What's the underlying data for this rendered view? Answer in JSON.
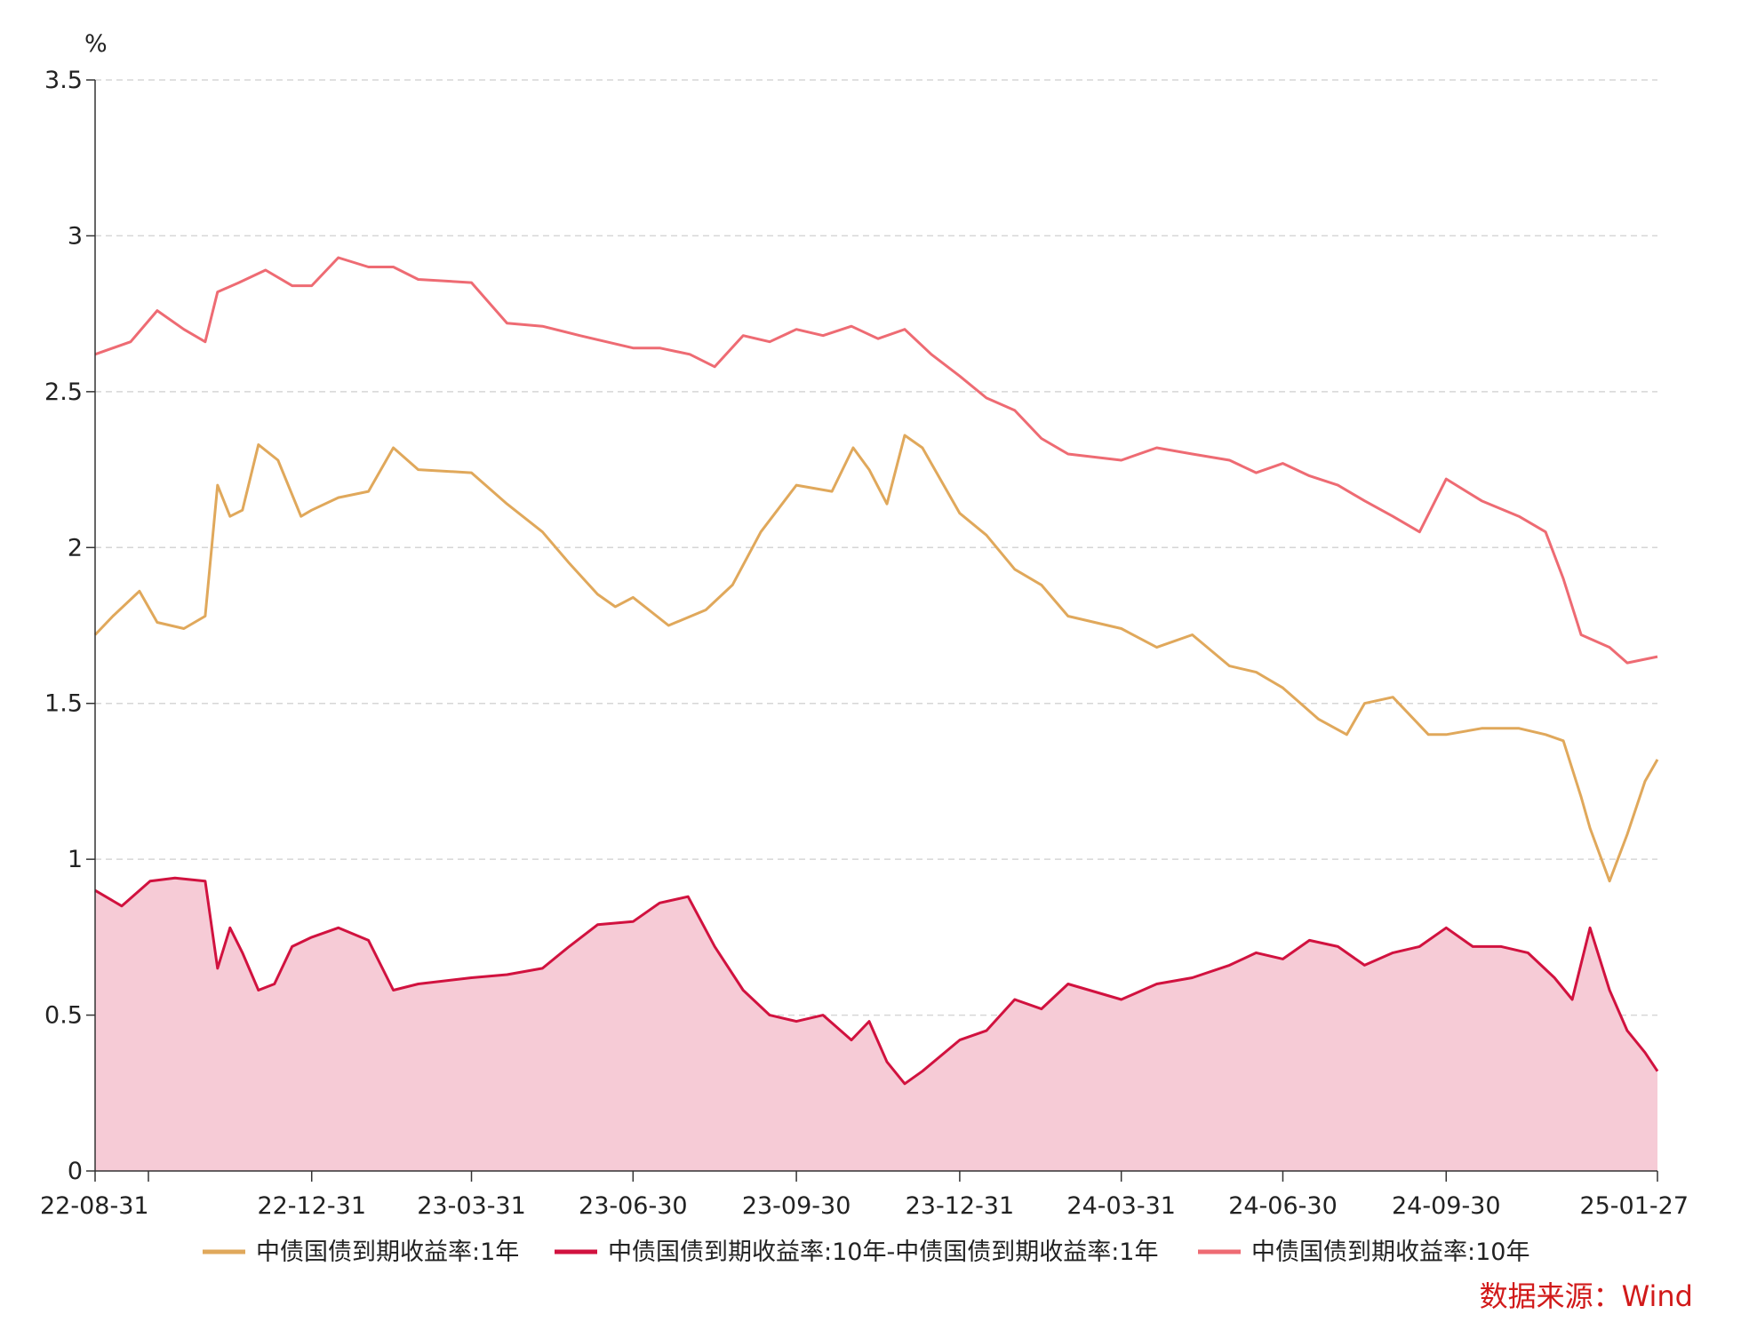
{
  "chart_data": {
    "type": "line",
    "title": "",
    "y_unit": "%",
    "ylim": [
      0,
      3.5
    ],
    "y_ticks": [
      "0",
      "0.5",
      "1",
      "1.5",
      "2",
      "2.5",
      "3",
      "3.5"
    ],
    "x_range": [
      "2022-08-31",
      "2025-01-27"
    ],
    "x_ticks": [
      {
        "label": "22-08-31",
        "date": "2022-08-31"
      },
      {
        "label": "22-12-31",
        "date": "2022-12-31"
      },
      {
        "label": "23-03-31",
        "date": "2023-03-31"
      },
      {
        "label": "23-06-30",
        "date": "2023-06-30"
      },
      {
        "label": "23-09-30",
        "date": "2023-09-30"
      },
      {
        "label": "23-12-31",
        "date": "2023-12-31"
      },
      {
        "label": "24-03-31",
        "date": "2024-03-31"
      },
      {
        "label": "24-06-30",
        "date": "2024-06-30"
      },
      {
        "label": "24-09-30",
        "date": "2024-09-30"
      },
      {
        "label": "25-01-27",
        "date": "2025-01-27"
      }
    ],
    "grid": true,
    "legend_position": "bottom",
    "series": [
      {
        "name": "中债国债到期收益率:1年",
        "color": "#e0a85b",
        "style": "line",
        "x": [
          "2022-08-31",
          "2022-09-10",
          "2022-09-25",
          "2022-10-05",
          "2022-10-20",
          "2022-11-01",
          "2022-11-08",
          "2022-11-15",
          "2022-11-22",
          "2022-12-01",
          "2022-12-12",
          "2022-12-25",
          "2022-12-31",
          "2023-01-15",
          "2023-02-01",
          "2023-02-15",
          "2023-03-01",
          "2023-03-31",
          "2023-04-20",
          "2023-05-10",
          "2023-05-25",
          "2023-06-10",
          "2023-06-20",
          "2023-06-30",
          "2023-07-20",
          "2023-08-10",
          "2023-08-25",
          "2023-09-10",
          "2023-09-30",
          "2023-10-20",
          "2023-11-01",
          "2023-11-10",
          "2023-11-20",
          "2023-11-30",
          "2023-12-10",
          "2023-12-31",
          "2024-01-15",
          "2024-01-31",
          "2024-02-15",
          "2024-03-01",
          "2024-03-31",
          "2024-04-20",
          "2024-05-10",
          "2024-05-31",
          "2024-06-15",
          "2024-06-30",
          "2024-07-20",
          "2024-08-05",
          "2024-08-15",
          "2024-08-31",
          "2024-09-20",
          "2024-09-30",
          "2024-10-20",
          "2024-11-10",
          "2024-11-25",
          "2024-12-05",
          "2024-12-15",
          "2024-12-20",
          "2024-12-31",
          "2025-01-10",
          "2025-01-20",
          "2025-01-27"
        ],
        "values": [
          1.72,
          1.78,
          1.86,
          1.76,
          1.74,
          1.78,
          2.2,
          2.1,
          2.12,
          2.33,
          2.28,
          2.1,
          2.12,
          2.16,
          2.18,
          2.32,
          2.25,
          2.24,
          2.14,
          2.05,
          1.95,
          1.85,
          1.81,
          1.84,
          1.75,
          1.8,
          1.88,
          2.05,
          2.2,
          2.18,
          2.32,
          2.25,
          2.14,
          2.36,
          2.32,
          2.11,
          2.04,
          1.93,
          1.88,
          1.78,
          1.74,
          1.68,
          1.72,
          1.62,
          1.6,
          1.55,
          1.45,
          1.4,
          1.5,
          1.52,
          1.4,
          1.4,
          1.42,
          1.42,
          1.4,
          1.38,
          1.2,
          1.1,
          0.93,
          1.08,
          1.25,
          1.32
        ]
      },
      {
        "name": "中债国债到期收益率:10年-中债国债到期收益率:1年",
        "color": "#d1123f",
        "fill": "#f6cbd6",
        "style": "area",
        "x": [
          "2022-08-31",
          "2022-09-15",
          "2022-10-01",
          "2022-10-15",
          "2022-11-01",
          "2022-11-08",
          "2022-11-15",
          "2022-11-22",
          "2022-12-01",
          "2022-12-10",
          "2022-12-20",
          "2022-12-31",
          "2023-01-15",
          "2023-02-01",
          "2023-02-15",
          "2023-03-01",
          "2023-03-31",
          "2023-04-20",
          "2023-05-10",
          "2023-05-25",
          "2023-06-10",
          "2023-06-30",
          "2023-07-15",
          "2023-07-31",
          "2023-08-15",
          "2023-08-31",
          "2023-09-15",
          "2023-09-30",
          "2023-10-15",
          "2023-10-31",
          "2023-11-10",
          "2023-11-20",
          "2023-11-30",
          "2023-12-10",
          "2023-12-31",
          "2024-01-15",
          "2024-01-31",
          "2024-02-15",
          "2024-03-01",
          "2024-03-31",
          "2024-04-20",
          "2024-05-10",
          "2024-05-31",
          "2024-06-15",
          "2024-06-30",
          "2024-07-15",
          "2024-07-31",
          "2024-08-15",
          "2024-08-31",
          "2024-09-15",
          "2024-09-30",
          "2024-10-15",
          "2024-10-31",
          "2024-11-15",
          "2024-11-30",
          "2024-12-10",
          "2024-12-20",
          "2024-12-31",
          "2025-01-10",
          "2025-01-20",
          "2025-01-27"
        ],
        "values": [
          0.9,
          0.85,
          0.93,
          0.94,
          0.93,
          0.65,
          0.78,
          0.7,
          0.58,
          0.6,
          0.72,
          0.75,
          0.78,
          0.74,
          0.58,
          0.6,
          0.62,
          0.63,
          0.65,
          0.72,
          0.79,
          0.8,
          0.86,
          0.88,
          0.72,
          0.58,
          0.5,
          0.48,
          0.5,
          0.42,
          0.48,
          0.35,
          0.28,
          0.32,
          0.42,
          0.45,
          0.55,
          0.52,
          0.6,
          0.55,
          0.6,
          0.62,
          0.66,
          0.7,
          0.68,
          0.74,
          0.72,
          0.66,
          0.7,
          0.72,
          0.78,
          0.72,
          0.72,
          0.7,
          0.62,
          0.55,
          0.78,
          0.58,
          0.45,
          0.38,
          0.32
        ]
      },
      {
        "name": "中债国债到期收益率:10年",
        "color": "#ee6b73",
        "style": "line",
        "x": [
          "2022-08-31",
          "2022-09-20",
          "2022-10-05",
          "2022-10-20",
          "2022-11-01",
          "2022-11-08",
          "2022-11-20",
          "2022-12-05",
          "2022-12-20",
          "2022-12-31",
          "2023-01-15",
          "2023-02-01",
          "2023-02-15",
          "2023-03-01",
          "2023-03-31",
          "2023-04-20",
          "2023-05-10",
          "2023-05-31",
          "2023-06-15",
          "2023-06-30",
          "2023-07-15",
          "2023-08-01",
          "2023-08-15",
          "2023-08-31",
          "2023-09-15",
          "2023-09-30",
          "2023-10-15",
          "2023-10-31",
          "2023-11-15",
          "2023-11-30",
          "2023-12-15",
          "2023-12-31",
          "2024-01-15",
          "2024-01-31",
          "2024-02-15",
          "2024-03-01",
          "2024-03-31",
          "2024-04-20",
          "2024-05-10",
          "2024-05-31",
          "2024-06-15",
          "2024-06-30",
          "2024-07-15",
          "2024-07-31",
          "2024-08-15",
          "2024-08-31",
          "2024-09-15",
          "2024-09-30",
          "2024-10-20",
          "2024-11-10",
          "2024-11-25",
          "2024-12-05",
          "2024-12-15",
          "2024-12-31",
          "2025-01-10",
          "2025-01-27"
        ],
        "values": [
          2.62,
          2.66,
          2.76,
          2.7,
          2.66,
          2.82,
          2.85,
          2.89,
          2.84,
          2.84,
          2.93,
          2.9,
          2.9,
          2.86,
          2.85,
          2.72,
          2.71,
          2.68,
          2.66,
          2.64,
          2.64,
          2.62,
          2.58,
          2.68,
          2.66,
          2.7,
          2.68,
          2.71,
          2.67,
          2.7,
          2.62,
          2.55,
          2.48,
          2.44,
          2.35,
          2.3,
          2.28,
          2.32,
          2.3,
          2.28,
          2.24,
          2.27,
          2.23,
          2.2,
          2.15,
          2.1,
          2.05,
          2.22,
          2.15,
          2.1,
          2.05,
          1.9,
          1.72,
          1.68,
          1.63,
          1.65
        ]
      }
    ],
    "source": "数据来源：Wind"
  }
}
